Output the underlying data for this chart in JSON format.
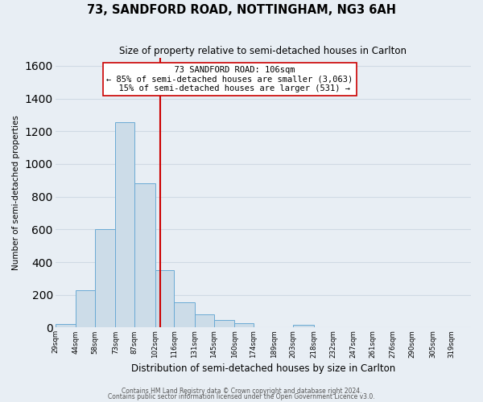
{
  "title": "73, SANDFORD ROAD, NOTTINGHAM, NG3 6AH",
  "subtitle": "Size of property relative to semi-detached houses in Carlton",
  "xlabel": "Distribution of semi-detached houses by size in Carlton",
  "ylabel": "Number of semi-detached properties",
  "bar_labels": [
    "29sqm",
    "44sqm",
    "58sqm",
    "73sqm",
    "87sqm",
    "102sqm",
    "116sqm",
    "131sqm",
    "145sqm",
    "160sqm",
    "174sqm",
    "189sqm",
    "203sqm",
    "218sqm",
    "232sqm",
    "247sqm",
    "261sqm",
    "276sqm",
    "290sqm",
    "305sqm",
    "319sqm"
  ],
  "bar_heights": [
    20,
    230,
    600,
    1255,
    880,
    350,
    155,
    80,
    48,
    25,
    0,
    0,
    15,
    0,
    0,
    0,
    0,
    0,
    0,
    0,
    0
  ],
  "bin_edges": [
    29,
    44,
    58,
    73,
    87,
    102,
    116,
    131,
    145,
    160,
    174,
    189,
    203,
    218,
    232,
    247,
    261,
    276,
    290,
    305,
    319
  ],
  "bar_color": "#ccdce8",
  "bar_edge_color": "#6aaad4",
  "property_label": "73 SANDFORD ROAD: 106sqm",
  "pct_smaller": 85,
  "pct_larger": 15,
  "count_smaller": 3063,
  "count_larger": 531,
  "vline_color": "#cc0000",
  "vline_x": 106,
  "ylim": [
    0,
    1650
  ],
  "yticks": [
    0,
    200,
    400,
    600,
    800,
    1000,
    1200,
    1400,
    1600
  ],
  "annotation_box_color": "#ffffff",
  "annotation_box_edge": "#cc0000",
  "footnote1": "Contains HM Land Registry data © Crown copyright and database right 2024.",
  "footnote2": "Contains public sector information licensed under the Open Government Licence v3.0.",
  "background_color": "#e8eef4",
  "grid_color": "#d0dae4"
}
